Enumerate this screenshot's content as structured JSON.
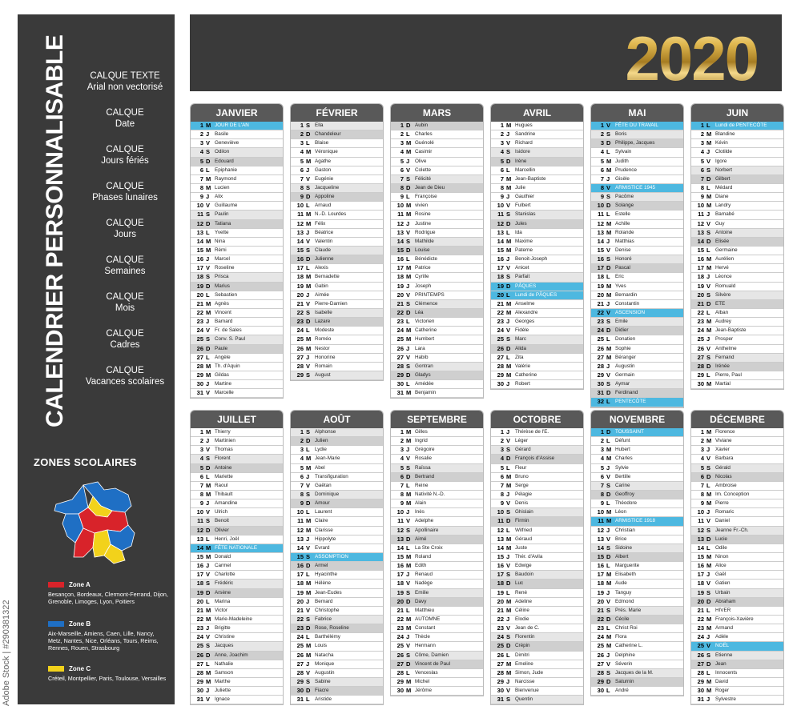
{
  "sidebar": {
    "title": "CALENDRIER PERSONNALISABLE",
    "layers": [
      {
        "l1": "CALQUE TEXTE",
        "l2": "Arial non vectorisé"
      },
      {
        "l1": "CALQUE",
        "l2": "Date"
      },
      {
        "l1": "CALQUE",
        "l2": "Jours fériés"
      },
      {
        "l1": "CALQUE",
        "l2": "Phases lunaires"
      },
      {
        "l1": "CALQUE",
        "l2": "Jours"
      },
      {
        "l1": "CALQUE",
        "l2": "Semaines"
      },
      {
        "l1": "CALQUE",
        "l2": "Mois"
      },
      {
        "l1": "CALQUE",
        "l2": "Cadres"
      },
      {
        "l1": "CALQUE",
        "l2": "Vacances scolaires"
      }
    ],
    "zones_title": "ZONES SCOLAIRES",
    "zones": [
      {
        "name": "Zone A",
        "color": "#d8232a",
        "cities": "Besançon, Bordeaux, Clermont-Ferrand, Dijon, Grenoble, Limoges, Lyon, Poitiers"
      },
      {
        "name": "Zone B",
        "color": "#1f6fc4",
        "cities": "Aix-Marseille, Amiens, Caen, Lille, Nancy, Metz, Nantes, Nice, Orléans, Tours, Reims, Rennes, Rouen, Strasbourg"
      },
      {
        "name": "Zone C",
        "color": "#f2d21b",
        "cities": "Créteil, Montpellier, Paris, Toulouse, Versailles"
      }
    ]
  },
  "watermark": "Adobe Stock | #290381322",
  "year": "2020",
  "colors": {
    "holiday": "#4db8e0",
    "header": "#595959",
    "dark": "#3a3a3a"
  },
  "months": [
    {
      "name": "JANVIER",
      "days": [
        "JOUR DE L'AN",
        "Basile",
        "Geneviève",
        "Odilon",
        "Edouard",
        "Epiphanie",
        "Raymond",
        "Lucien",
        "Alix",
        "Guillaume",
        "Paulin",
        "Tatiana",
        "Yvette",
        "Nina",
        "Rémi",
        "Marcel",
        "Roseline",
        "Prisca",
        "Marius",
        "Sebastien",
        "Agnès",
        "Vincent",
        "Barnard",
        "Fr. de Sales",
        "Conv. S. Paul",
        "Paule",
        "Angèle",
        "Th. d'Aquin",
        "Gildas",
        "Martine",
        "Marcelle"
      ]
    },
    {
      "name": "FÉVRIER",
      "days": [
        "Ella",
        "Chandeleur",
        "Blaise",
        "Véronique",
        "Agathe",
        "Gaston",
        "Eugénie",
        "Jacqueline",
        "Appoline",
        "Arnaud",
        "N.-D. Lourdes",
        "Félix",
        "Béatrice",
        "Valentin",
        "Claude",
        "Julienne",
        "Alexis",
        "Bernadette",
        "Gabin",
        "Aimée",
        "Pierre-Damien",
        "Isabelle",
        "Lazare",
        "Modeste",
        "Roméo",
        "Nestor",
        "Honorine",
        "Romain",
        "August"
      ]
    },
    {
      "name": "MARS",
      "days": [
        "Aubin",
        "Charles",
        "Guénolé",
        "Casimir",
        "Olive",
        "Colette",
        "Félicité",
        "Jean de Dieu",
        "Françoise",
        "vivien",
        "Rosine",
        "Justine",
        "Rodrigue",
        "Mathilde",
        "Louise",
        "Bénédicte",
        "Patrice",
        "Cyrille",
        "Joseph",
        "PRINTEMPS",
        "Clémence",
        "Léa",
        "Victorien",
        "Catherine",
        "Humbert",
        "Lara",
        "Habib",
        "Gontran",
        "Gladys",
        "Amédée",
        "Benjamin"
      ]
    },
    {
      "name": "AVRIL",
      "days": [
        "Hugues",
        "Sandrine",
        "Richard",
        "Isidore",
        "Irène",
        "Marcellin",
        "Jean-Baptiste",
        "Julie",
        "Gauthier",
        "Fulbert",
        "Stanislas",
        "Jules",
        "Ida",
        "Maxime",
        "Paterne",
        "Benoit-Joseph",
        "Anicet",
        "Parfait",
        "PÂQUES",
        "Lundi de PÂQUES",
        "Anselme",
        "Alexandre",
        "Georges",
        "Fidèle",
        "Marc",
        "Alida",
        "Zita",
        "Valérie",
        "Catherine",
        "Robert"
      ]
    },
    {
      "name": "MAI",
      "days": [
        "FÊTE DU TRAVAIL",
        "Boris",
        "Philippe, Jacques",
        "Sylvain",
        "Judith",
        "Prudence",
        "Gisèle",
        "ARMISTICE 1945",
        "Pacôme",
        "Solange",
        "Estelle",
        "Achille",
        "Rolande",
        "Matthias",
        "Denise",
        "Honoré",
        "Pascal",
        "Eric",
        "Yves",
        "Bernardin",
        "Constantin",
        "ASCENSION",
        "Emile",
        "Didier",
        "Donatien",
        "Sophie",
        "Béranger",
        "Augustin",
        "Germain",
        "Aymar",
        "Ferdinand",
        "PENTECÔTE"
      ]
    },
    {
      "name": "JUIN",
      "days": [
        "Lundi de PENTECÔTE",
        "Blandine",
        "Kévin",
        "Clotilde",
        "Igore",
        "Norbert",
        "Gilbert",
        "Médard",
        "Diane",
        "Landry",
        "Barnabé",
        "Guy",
        "Antoine",
        "Elisée",
        "Germaine",
        "Aurélien",
        "Hervé",
        "Léonce",
        "Romuald",
        "Silvère",
        "ETE",
        "Alban",
        "Audrey",
        "Jean-Baptiste",
        "Prosper",
        "Anthelme",
        "Fernand",
        "Irénée",
        "Pierre, Paul",
        "Martial"
      ]
    },
    {
      "name": "JUILLET",
      "days": [
        "Thierry",
        "Martinien",
        "Thomas",
        "Florent",
        "Antoine",
        "Mariette",
        "Raoul",
        "Thibault",
        "Amandine",
        "Ulrich",
        "Benoit",
        "Olivier",
        "Henri, Joël",
        "FÊTE NATIONALE",
        "Donald",
        "Carmel",
        "Charlotte",
        "Frédéric",
        "Arsène",
        "Marina",
        "Victor",
        "Marie-Madeleine",
        "Brigitte",
        "Christine",
        "Jacques",
        "Anne, Joachim",
        "Nathalie",
        "Samson",
        "Marthe",
        "Juliette",
        "Ignace"
      ]
    },
    {
      "name": "AOÛT",
      "days": [
        "Alphonse",
        "Julien",
        "Lydie",
        "Jean-Marie",
        "Abel",
        "Transfiguration",
        "Gaëtan",
        "Dominique",
        "Amour",
        "Laurent",
        "Claire",
        "Clarisse",
        "Hippolyte",
        "Evrard",
        "ASSOMPTION",
        "Armel",
        "Hyacinthe",
        "Hélène",
        "Jean-Eudes",
        "Bernard",
        "Christophe",
        "Fabrice",
        "Rose, Roseline",
        "Barthélémy",
        "Louis",
        "Natacha",
        "Monique",
        "Augustin",
        "Sabine",
        "Fiacre",
        "Aristide"
      ]
    },
    {
      "name": "SEPTEMBRE",
      "days": [
        "Gilles",
        "Ingrid",
        "Grégoire",
        "Rosalie",
        "Raïssa",
        "Bertrand",
        "Reine",
        "Nativité N.-D.",
        "Alain",
        "Inès",
        "Adelphe",
        "Apollinaire",
        "Aimé",
        "La Ste Croix",
        "Roland",
        "Edith",
        "Renaud",
        "Nadège",
        "Emilie",
        "Davy",
        "Matthieu",
        "AUTOMNE",
        "Constant",
        "Thècle",
        "Hermann",
        "Côme, Damien",
        "Vincent de Paul",
        "Venceslas",
        "Michel",
        "Jérôme"
      ]
    },
    {
      "name": "OCTOBRE",
      "days": [
        "Thérèse de l'E.",
        "Léger",
        "Gérard",
        "François d'Assise",
        "Fleur",
        "Bruno",
        "Serge",
        "Pélagie",
        "Denis",
        "Ghislain",
        "Firmin",
        "Wilfried",
        "Géraud",
        "Juste",
        "Thér. d'Avila",
        "Edwige",
        "Baudoin",
        "Luc",
        "René",
        "Adeline",
        "Céline",
        "Elodie",
        "Jean de C.",
        "Florentin",
        "Crépin",
        "Dimitri",
        "Emeline",
        "Simon, Jude",
        "Narcisse",
        "Bienvenue",
        "Quentin"
      ]
    },
    {
      "name": "NOVEMBRE",
      "days": [
        "TOUSSAINT",
        "Défunt",
        "Hubert",
        "Charles",
        "Sylvie",
        "Bertille",
        "Carine",
        "Geoffroy",
        "Théodore",
        "Léon",
        "ARMISTICE 1918",
        "Christian",
        "Brice",
        "Sidoine",
        "Albert",
        "Marguerite",
        "Elisabeth",
        "Aude",
        "Tanguy",
        "Edmond",
        "Prés. Marie",
        "Cécile",
        "Christ Roi",
        "Flora",
        "Catherine L.",
        "Delphine",
        "Séverin",
        "Jacques de la M.",
        "Saturnin",
        "André"
      ]
    },
    {
      "name": "DÉCEMBRE",
      "days": [
        "Florence",
        "Viviane",
        "Xavier",
        "Barbara",
        "Gérald",
        "Nicolas",
        "Ambroise",
        "Im. Conception",
        "Pierre",
        "Romaric",
        "Daniel",
        "Jeanne Fr.-Ch.",
        "Lucie",
        "Odile",
        "Ninon",
        "Alice",
        "Gaël",
        "Gatien",
        "Urbain",
        "Abraham",
        "HIVER",
        "François-Xavière",
        "Armand",
        "Adèle",
        "NOËL",
        "Etienne",
        "Jean",
        "Innocents",
        "David",
        "Roger",
        "Sylvestre"
      ]
    }
  ]
}
